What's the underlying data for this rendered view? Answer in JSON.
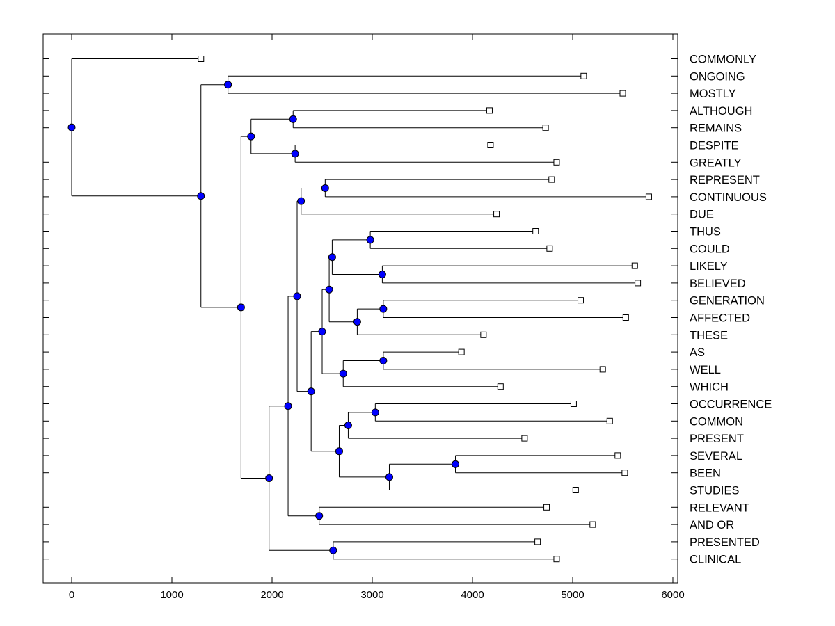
{
  "chart_data": {
    "type": "dendrogram",
    "title": "",
    "xlabel": "",
    "ylabel": "",
    "xlim": [
      -280,
      6040
    ],
    "xticks": [
      0,
      1000,
      2000,
      3000,
      4000,
      5000,
      6000
    ],
    "xtick_labels": [
      "0",
      "1000",
      "2000",
      "3000",
      "4000",
      "5000",
      "6000"
    ],
    "node_color": "#0000ff",
    "leaves": [
      {
        "id": "L0",
        "label": "COMMONLY",
        "x": 1290
      },
      {
        "id": "L1",
        "label": "ONGOING",
        "x": 5110
      },
      {
        "id": "L2",
        "label": "MOSTLY",
        "x": 5500
      },
      {
        "id": "L3",
        "label": "ALTHOUGH",
        "x": 4170
      },
      {
        "id": "L4",
        "label": "REMAINS",
        "x": 4730
      },
      {
        "id": "L5",
        "label": "DESPITE",
        "x": 4180
      },
      {
        "id": "L6",
        "label": "GREATLY",
        "x": 4840
      },
      {
        "id": "L7",
        "label": "REPRESENT",
        "x": 4790
      },
      {
        "id": "L8",
        "label": "CONTINUOUS",
        "x": 5760
      },
      {
        "id": "L9",
        "label": "DUE",
        "x": 4240
      },
      {
        "id": "L10",
        "label": "THUS",
        "x": 4630
      },
      {
        "id": "L11",
        "label": "COULD",
        "x": 4770
      },
      {
        "id": "L12",
        "label": "LIKELY",
        "x": 5620
      },
      {
        "id": "L13",
        "label": "BELIEVED",
        "x": 5650
      },
      {
        "id": "L14",
        "label": "GENERATION",
        "x": 5080
      },
      {
        "id": "L15",
        "label": "AFFECTED",
        "x": 5530
      },
      {
        "id": "L16",
        "label": "THESE",
        "x": 4110
      },
      {
        "id": "L17",
        "label": "AS",
        "x": 3890
      },
      {
        "id": "L18",
        "label": "WELL",
        "x": 5300
      },
      {
        "id": "L19",
        "label": "WHICH",
        "x": 4280
      },
      {
        "id": "L20",
        "label": "OCCURRENCE",
        "x": 5010
      },
      {
        "id": "L21",
        "label": "COMMON",
        "x": 5370
      },
      {
        "id": "L22",
        "label": "PRESENT",
        "x": 4520
      },
      {
        "id": "L23",
        "label": "SEVERAL",
        "x": 5450
      },
      {
        "id": "L24",
        "label": "BEEN",
        "x": 5520
      },
      {
        "id": "L25",
        "label": "STUDIES",
        "x": 5030
      },
      {
        "id": "L26",
        "label": "RELEVANT",
        "x": 4740
      },
      {
        "id": "L27",
        "label": "AND OR",
        "x": 5200
      },
      {
        "id": "L28",
        "label": "PRESENTED",
        "x": 4650
      },
      {
        "id": "L29",
        "label": "CLINICAL",
        "x": 4840
      }
    ],
    "merges": [
      {
        "id": "N1",
        "x": 1560,
        "children": [
          "L1",
          "L2"
        ]
      },
      {
        "id": "N2",
        "x": 2210,
        "children": [
          "L3",
          "L4"
        ]
      },
      {
        "id": "N3",
        "x": 2230,
        "children": [
          "L5",
          "L6"
        ]
      },
      {
        "id": "N4",
        "x": 1790,
        "children": [
          "N2",
          "N3"
        ]
      },
      {
        "id": "N5",
        "x": 2530,
        "children": [
          "L7",
          "L8"
        ]
      },
      {
        "id": "N6",
        "x": 2290,
        "children": [
          "N5",
          "L9"
        ]
      },
      {
        "id": "N7",
        "x": 2980,
        "children": [
          "L10",
          "L11"
        ]
      },
      {
        "id": "N8",
        "x": 3100,
        "children": [
          "L12",
          "L13"
        ]
      },
      {
        "id": "N9",
        "x": 2600,
        "children": [
          "N7",
          "N8"
        ]
      },
      {
        "id": "N10",
        "x": 3110,
        "children": [
          "L14",
          "L15"
        ]
      },
      {
        "id": "N11",
        "x": 2850,
        "children": [
          "N10",
          "L16"
        ]
      },
      {
        "id": "N12",
        "x": 2570,
        "children": [
          "N9",
          "N11"
        ]
      },
      {
        "id": "N13",
        "x": 3110,
        "children": [
          "L17",
          "L18"
        ]
      },
      {
        "id": "N14",
        "x": 2710,
        "children": [
          "N13",
          "L19"
        ]
      },
      {
        "id": "N15",
        "x": 2500,
        "children": [
          "N12",
          "N14"
        ]
      },
      {
        "id": "N16",
        "x": 3030,
        "children": [
          "L20",
          "L21"
        ]
      },
      {
        "id": "N17",
        "x": 2760,
        "children": [
          "N16",
          "L22"
        ]
      },
      {
        "id": "N18",
        "x": 3830,
        "children": [
          "L23",
          "L24"
        ]
      },
      {
        "id": "N19",
        "x": 3170,
        "children": [
          "N18",
          "L25"
        ]
      },
      {
        "id": "N20",
        "x": 2670,
        "children": [
          "N17",
          "N19"
        ]
      },
      {
        "id": "N21",
        "x": 2390,
        "children": [
          "N15",
          "N20"
        ]
      },
      {
        "id": "N22",
        "x": 2250,
        "children": [
          "N6",
          "N21"
        ]
      },
      {
        "id": "N23",
        "x": 2470,
        "children": [
          "L26",
          "L27"
        ]
      },
      {
        "id": "N24",
        "x": 2160,
        "children": [
          "N22",
          "N23"
        ]
      },
      {
        "id": "N25",
        "x": 2610,
        "children": [
          "L28",
          "L29"
        ]
      },
      {
        "id": "N26",
        "x": 1970,
        "children": [
          "N24",
          "N25"
        ]
      },
      {
        "id": "N27",
        "x": 1690,
        "children": [
          "N4",
          "N26"
        ]
      },
      {
        "id": "N28",
        "x": 1290,
        "children": [
          "N1",
          "N27"
        ]
      },
      {
        "id": "N29",
        "x": 0,
        "children": [
          "L0",
          "N28"
        ]
      }
    ]
  }
}
